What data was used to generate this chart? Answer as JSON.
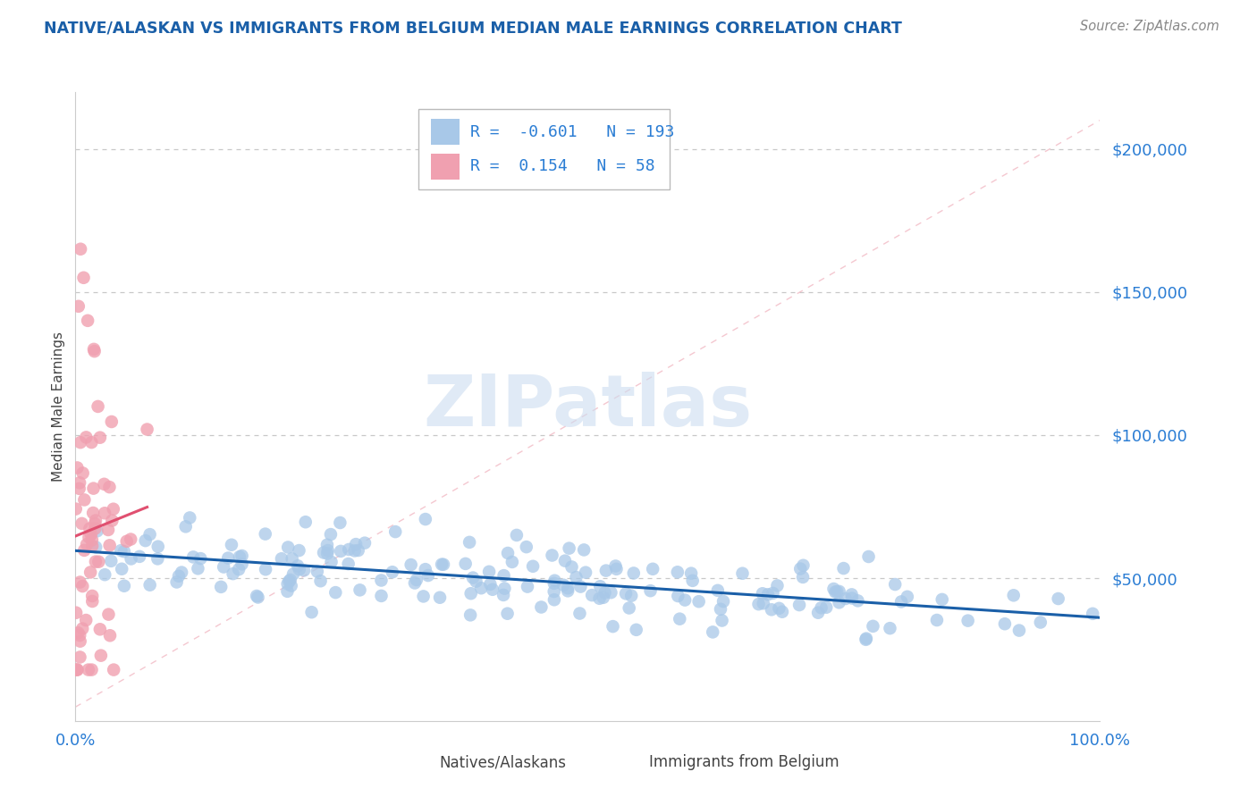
{
  "title": "NATIVE/ALASKAN VS IMMIGRANTS FROM BELGIUM MEDIAN MALE EARNINGS CORRELATION CHART",
  "source": "Source: ZipAtlas.com",
  "ylabel": "Median Male Earnings",
  "xmin": 0.0,
  "xmax": 1.0,
  "ymin": 0,
  "ymax": 220000,
  "ytick_values": [
    50000,
    100000,
    150000,
    200000
  ],
  "ytick_labels": [
    "$50,000",
    "$100,000",
    "$150,000",
    "$200,000"
  ],
  "xtick_values": [
    0.0,
    1.0
  ],
  "xtick_labels": [
    "0.0%",
    "100.0%"
  ],
  "native_R": -0.601,
  "native_N": 193,
  "immigrant_R": 0.154,
  "immigrant_N": 58,
  "native_color": "#a8c8e8",
  "native_line_color": "#1a5fa8",
  "immigrant_color": "#f0a0b0",
  "immigrant_line_color": "#e05070",
  "diag_line_color": "#f0b0bc",
  "watermark_color": "#ccddf0",
  "background_color": "#ffffff",
  "grid_color": "#c8c8c8",
  "title_color": "#1a5fa8",
  "ylabel_color": "#444444",
  "tick_color": "#2b7dd4",
  "source_color": "#888888",
  "legend_border_color": "#cccccc",
  "legend_text_color": "#2b7dd4",
  "bottom_legend_text_color": "#444444"
}
